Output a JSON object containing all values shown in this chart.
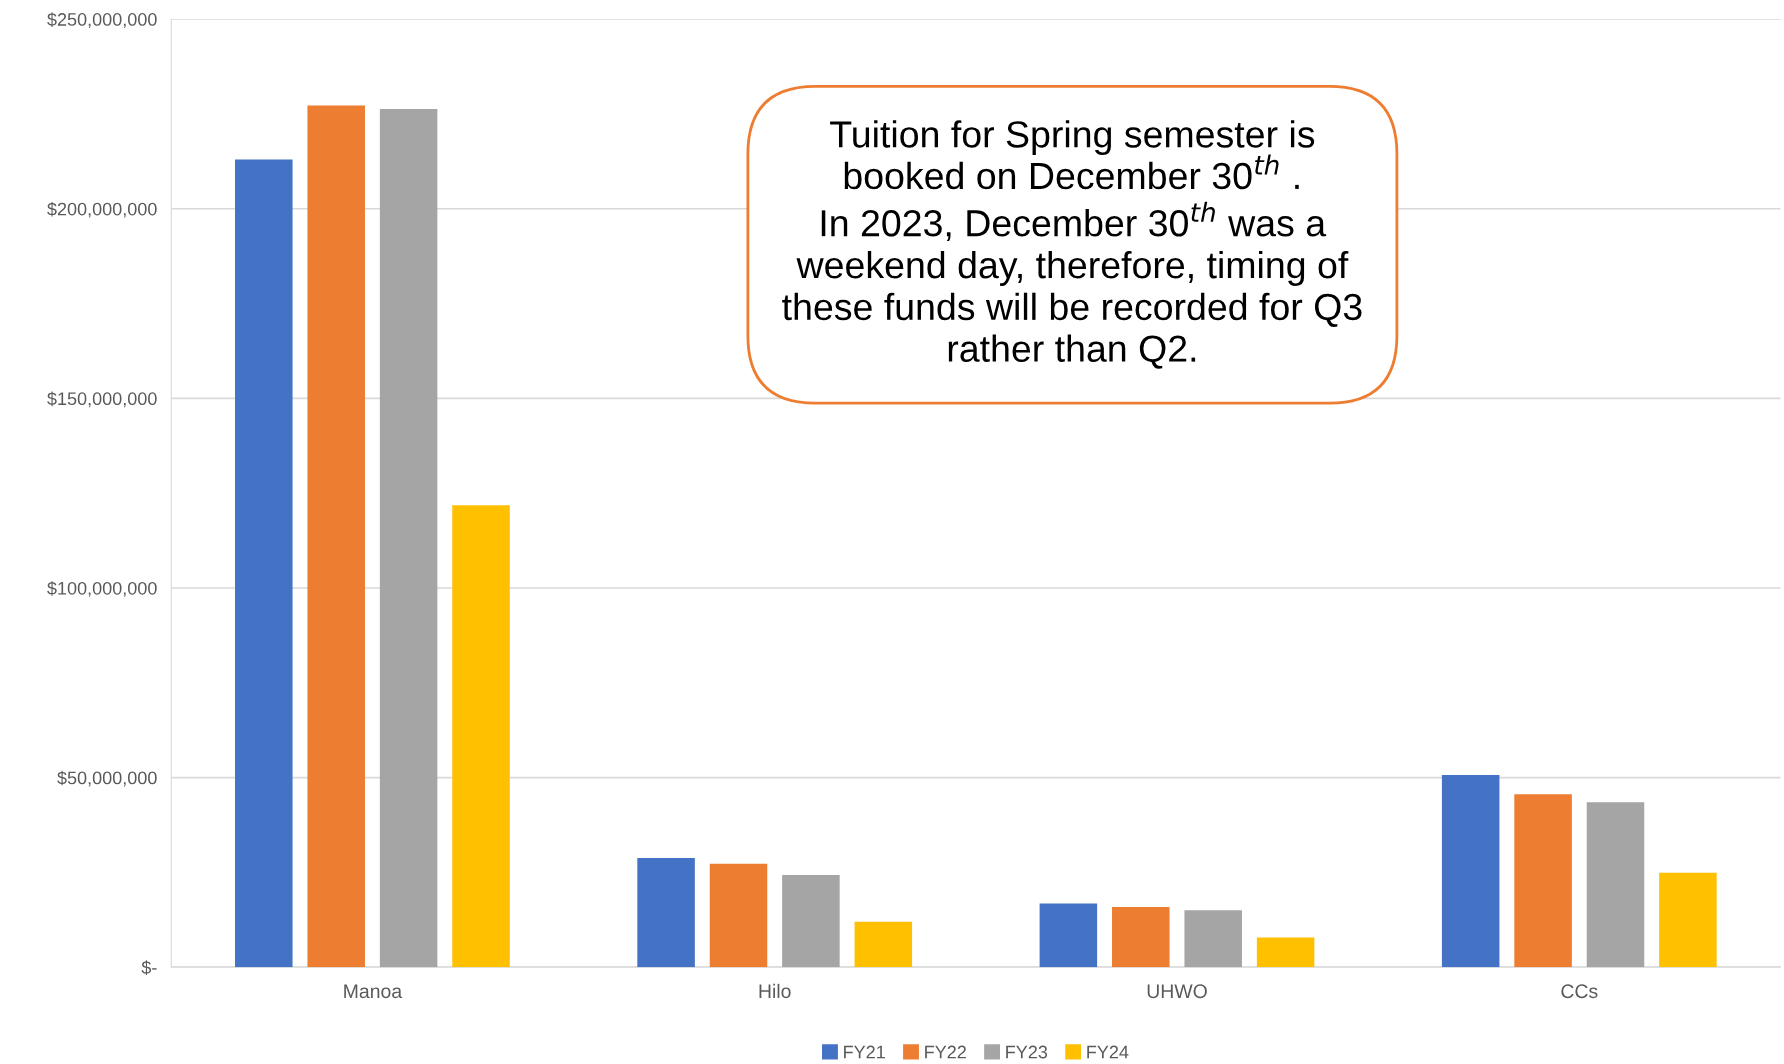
{
  "chart_data": {
    "type": "bar",
    "categories": [
      "Manoa",
      "Hilo",
      "UHWO",
      "CCs"
    ],
    "series": [
      {
        "name": "FY21",
        "color": "#4472c4",
        "values": [
          213000000,
          28800000,
          16800000,
          50700000
        ]
      },
      {
        "name": "FY22",
        "color": "#ed7d31",
        "values": [
          227200000,
          27300000,
          15900000,
          45600000
        ]
      },
      {
        "name": "FY23",
        "color": "#a5a5a5",
        "values": [
          226300000,
          24300000,
          15000000,
          43500000
        ]
      },
      {
        "name": "FY24",
        "color": "#ffc000",
        "values": [
          121800000,
          12000000,
          7800000,
          24900000
        ]
      }
    ],
    "ylim": [
      0,
      250000000
    ],
    "yticks": [
      {
        "value": 0,
        "label": "$-"
      },
      {
        "value": 50000000,
        "label": "$50,000,000"
      },
      {
        "value": 100000000,
        "label": "$100,000,000"
      },
      {
        "value": 150000000,
        "label": "$150,000,000"
      },
      {
        "value": 200000000,
        "label": "$200,000,000"
      },
      {
        "value": 250000000,
        "label": "$250,000,000"
      }
    ],
    "grid": "y",
    "legend": "bottom",
    "annotations": [
      "Tuition for Spring semester is\nbooked on December 30$^{th}$ .\nIn 2023, December 30$^{th}$ was a\nweekend day, therefore, timing of\nthese funds will be recorded for Q3\nrather than Q2."
    ]
  }
}
